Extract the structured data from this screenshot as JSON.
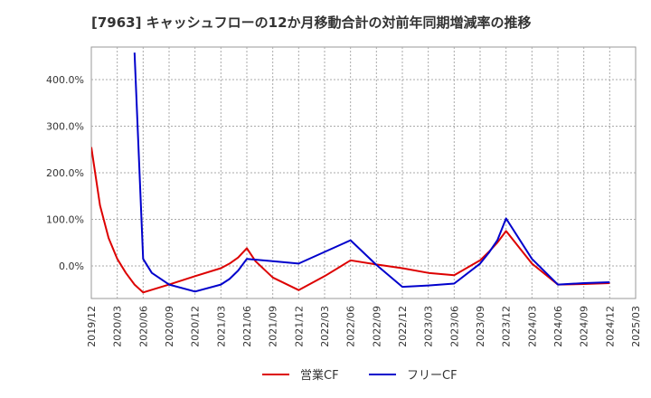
{
  "chart_data": {
    "type": "line",
    "title": "[7963]  キャッシュフローの12か月移動合計の対前年同期増減率の推移",
    "y_axis": {
      "ticks": [
        0,
        100,
        200,
        300,
        400
      ],
      "tick_labels": [
        "0.0%",
        "100.0%",
        "200.0%",
        "300.0%",
        "400.0%"
      ],
      "ylim": [
        -70,
        470
      ]
    },
    "x_axis": {
      "ticks": [
        "2019/12",
        "2020/03",
        "2020/06",
        "2020/09",
        "2020/12",
        "2021/03",
        "2021/06",
        "2021/09",
        "2021/12",
        "2022/03",
        "2022/06",
        "2022/09",
        "2022/12",
        "2023/03",
        "2023/06",
        "2023/09",
        "2023/12",
        "2024/03",
        "2024/06",
        "2024/09",
        "2024/12",
        "2025/03"
      ],
      "range_months": [
        "2019/12",
        "2025/03"
      ]
    },
    "grid": true,
    "legend_position": "bottom-center",
    "series": [
      {
        "name": "営業CF",
        "color": "#dd0000",
        "points": [
          [
            "2019/12",
            255
          ],
          [
            "2020/01",
            130
          ],
          [
            "2020/02",
            60
          ],
          [
            "2020/03",
            15
          ],
          [
            "2020/04",
            -15
          ],
          [
            "2020/05",
            -40
          ],
          [
            "2020/06",
            -57
          ],
          [
            "2020/09",
            -40
          ],
          [
            "2020/12",
            -22
          ],
          [
            "2021/03",
            -5
          ],
          [
            "2021/04",
            5
          ],
          [
            "2021/05",
            18
          ],
          [
            "2021/06",
            38
          ],
          [
            "2021/07",
            10
          ],
          [
            "2021/09",
            -25
          ],
          [
            "2021/12",
            -52
          ],
          [
            "2022/03",
            -22
          ],
          [
            "2022/06",
            12
          ],
          [
            "2022/09",
            3
          ],
          [
            "2022/12",
            -5
          ],
          [
            "2023/03",
            -15
          ],
          [
            "2023/06",
            -20
          ],
          [
            "2023/09",
            12
          ],
          [
            "2023/10",
            30
          ],
          [
            "2023/11",
            50
          ],
          [
            "2023/12",
            75
          ],
          [
            "2024/03",
            5
          ],
          [
            "2024/06",
            -40
          ],
          [
            "2024/09",
            -39
          ],
          [
            "2024/12",
            -37
          ]
        ]
      },
      {
        "name": "フリーCF",
        "color": "#0000cc",
        "points": [
          [
            "2020/05",
            458
          ],
          [
            "2020/06",
            15
          ],
          [
            "2020/07",
            -15
          ],
          [
            "2020/09",
            -40
          ],
          [
            "2020/12",
            -55
          ],
          [
            "2021/03",
            -40
          ],
          [
            "2021/04",
            -28
          ],
          [
            "2021/05",
            -10
          ],
          [
            "2021/06",
            15
          ],
          [
            "2021/09",
            10
          ],
          [
            "2021/12",
            5
          ],
          [
            "2022/03",
            30
          ],
          [
            "2022/06",
            55
          ],
          [
            "2022/09",
            2
          ],
          [
            "2022/12",
            -45
          ],
          [
            "2023/03",
            -42
          ],
          [
            "2023/06",
            -38
          ],
          [
            "2023/09",
            5
          ],
          [
            "2023/10",
            28
          ],
          [
            "2023/11",
            55
          ],
          [
            "2023/12",
            102
          ],
          [
            "2024/03",
            15
          ],
          [
            "2024/06",
            -40
          ],
          [
            "2024/09",
            -37
          ],
          [
            "2024/12",
            -35
          ]
        ]
      }
    ]
  }
}
